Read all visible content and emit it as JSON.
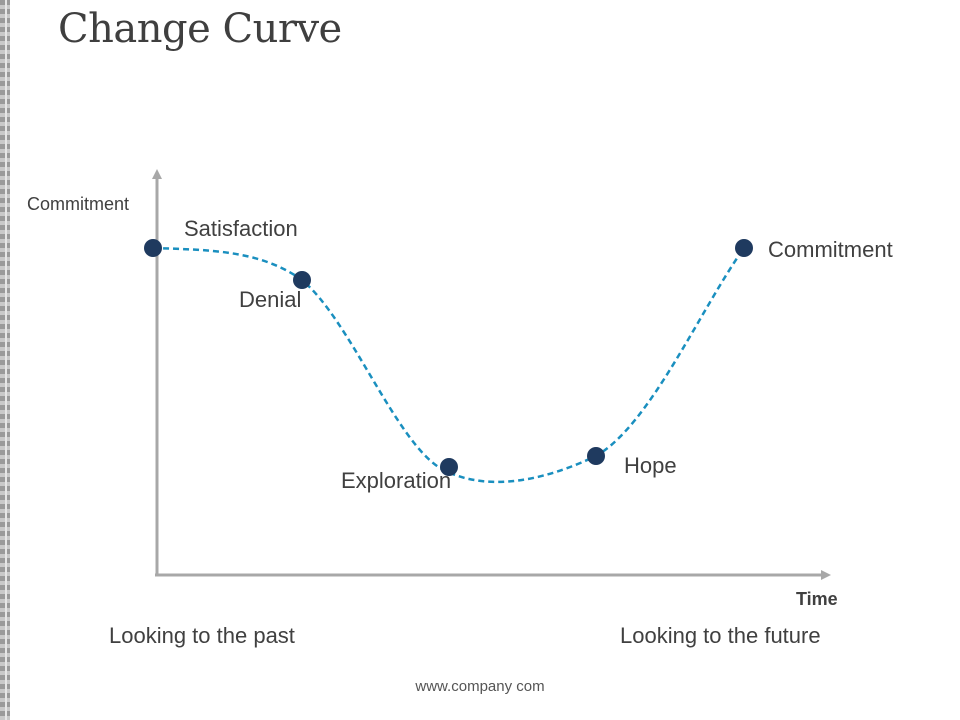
{
  "title": "Change Curve",
  "axes": {
    "y_label": "Commitment",
    "x_label": "Time"
  },
  "stages": [
    {
      "label": "Satisfaction"
    },
    {
      "label": "Denial"
    },
    {
      "label": "Exploration"
    },
    {
      "label": "Hope"
    },
    {
      "label": "Commitment"
    }
  ],
  "footer": {
    "left": "Looking to the past",
    "right": "Looking to the future",
    "url": "www.company com"
  },
  "colors": {
    "curve": "#1a8fbf",
    "marker": "#1f3a5f",
    "axis": "#a8a8a8",
    "text": "#404040"
  }
}
